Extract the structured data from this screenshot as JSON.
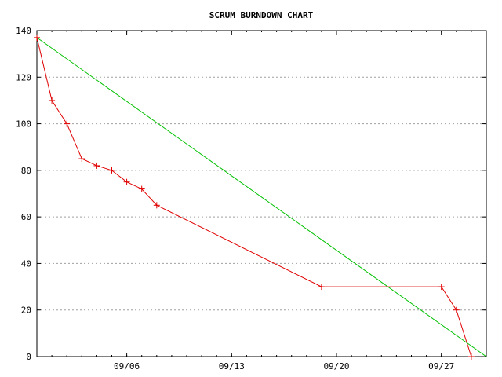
{
  "chart_data": {
    "type": "line",
    "title": "SCRUM BURNDOWN CHART",
    "xlabel": "",
    "ylabel": "",
    "x_domain": [
      "2011-08-31",
      "2011-09-30"
    ],
    "ylim": [
      0,
      140
    ],
    "y_ticks": [
      0,
      20,
      40,
      60,
      80,
      100,
      120,
      140
    ],
    "x_ticks": [
      {
        "date": "2011-09-06",
        "label": "09/06"
      },
      {
        "date": "2011-09-13",
        "label": "09/13"
      },
      {
        "date": "2011-09-20",
        "label": "09/20"
      },
      {
        "date": "2011-09-27",
        "label": "09/27"
      }
    ],
    "grid": "horizontal dashed",
    "legend": "none",
    "series": [
      {
        "color": "#00c000",
        "marker": "none",
        "points": [
          {
            "x": "2011-08-31",
            "y": 137
          },
          {
            "x": "2011-09-30",
            "y": 0
          }
        ]
      },
      {
        "color": "#e00000",
        "marker": "plus",
        "points": [
          {
            "x": "2011-08-31",
            "y": 137
          },
          {
            "x": "2011-09-01",
            "y": 110
          },
          {
            "x": "2011-09-02",
            "y": 100
          },
          {
            "x": "2011-09-03",
            "y": 85
          },
          {
            "x": "2011-09-04",
            "y": 82
          },
          {
            "x": "2011-09-05",
            "y": 80
          },
          {
            "x": "2011-09-06",
            "y": 75
          },
          {
            "x": "2011-09-07",
            "y": 72
          },
          {
            "x": "2011-09-08",
            "y": 65
          },
          {
            "x": "2011-09-19",
            "y": 30
          },
          {
            "x": "2011-09-27",
            "y": 30
          },
          {
            "x": "2011-09-28",
            "y": 20
          },
          {
            "x": "2011-09-29",
            "y": 0
          }
        ]
      }
    ]
  }
}
